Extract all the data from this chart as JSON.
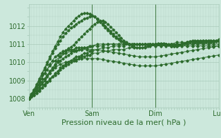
{
  "bg_color": "#cce8dc",
  "line_color": "#2d6b2d",
  "grid_color": "#aaccbb",
  "xlabel": "Pression niveau de la mer( hPa )",
  "xtick_labels": [
    "Ven",
    "Sam",
    "Dim",
    "Lun"
  ],
  "xtick_positions": [
    0,
    48,
    96,
    144
  ],
  "ylim": [
    1007.6,
    1013.2
  ],
  "yticks": [
    1008,
    1009,
    1010,
    1011,
    1012
  ],
  "xlabel_fontsize": 8,
  "tick_fontsize": 7,
  "series": [
    {
      "x": [
        0,
        2,
        4,
        6,
        8,
        10,
        12,
        14,
        16,
        18,
        20,
        22,
        24,
        26,
        28,
        30,
        32,
        34,
        36,
        38,
        40,
        42,
        44,
        46,
        48,
        52,
        56,
        60,
        64,
        68,
        72,
        76,
        80,
        84,
        88,
        92,
        96,
        100,
        104,
        108,
        112,
        116,
        120,
        124,
        128,
        132,
        136,
        140,
        144
      ],
      "y": [
        1008.0,
        1008.1,
        1008.2,
        1008.3,
        1008.5,
        1008.6,
        1008.8,
        1008.9,
        1009.1,
        1009.2,
        1009.4,
        1009.5,
        1009.7,
        1009.8,
        1009.9,
        1010.0,
        1010.1,
        1010.2,
        1010.3,
        1010.3,
        1010.4,
        1010.5,
        1010.5,
        1010.6,
        1010.6,
        1010.7,
        1010.8,
        1010.8,
        1010.9,
        1010.9,
        1010.9,
        1011.0,
        1011.0,
        1011.0,
        1011.0,
        1011.0,
        1011.0,
        1011.0,
        1011.0,
        1011.0,
        1011.0,
        1011.0,
        1011.0,
        1011.0,
        1011.0,
        1011.0,
        1011.0,
        1011.0,
        1011.0
      ]
    },
    {
      "x": [
        0,
        2,
        4,
        6,
        8,
        10,
        12,
        14,
        16,
        18,
        20,
        22,
        24,
        26,
        28,
        30,
        32,
        34,
        36,
        38,
        40,
        42,
        44,
        46,
        48,
        52,
        56,
        60,
        64,
        68,
        72,
        76,
        80,
        84,
        88,
        92,
        96,
        100,
        104,
        108,
        112,
        116,
        120,
        124,
        128,
        132,
        136,
        140,
        144
      ],
      "y": [
        1008.0,
        1008.1,
        1008.2,
        1008.3,
        1008.4,
        1008.6,
        1008.7,
        1008.9,
        1009.0,
        1009.2,
        1009.3,
        1009.4,
        1009.6,
        1009.7,
        1009.8,
        1009.9,
        1010.0,
        1010.1,
        1010.1,
        1010.2,
        1010.3,
        1010.3,
        1010.4,
        1010.4,
        1010.5,
        1010.5,
        1010.6,
        1010.6,
        1010.7,
        1010.7,
        1010.7,
        1010.8,
        1010.8,
        1010.8,
        1010.8,
        1010.9,
        1010.9,
        1010.9,
        1010.9,
        1010.9,
        1010.9,
        1010.9,
        1010.9,
        1010.9,
        1010.9,
        1010.9,
        1010.9,
        1010.9,
        1010.9
      ]
    },
    {
      "x": [
        0,
        2,
        4,
        6,
        8,
        10,
        12,
        14,
        16,
        18,
        20,
        22,
        24,
        26,
        28,
        30,
        32,
        34,
        36,
        38,
        40,
        42,
        44,
        46,
        48,
        52,
        56,
        60,
        64,
        68,
        72,
        76,
        80,
        84,
        88,
        92,
        96,
        100,
        104,
        108,
        112,
        116,
        120,
        124,
        128,
        132,
        136,
        140,
        144
      ],
      "y": [
        1008.0,
        1008.1,
        1008.3,
        1008.4,
        1008.6,
        1008.8,
        1009.0,
        1009.2,
        1009.4,
        1009.6,
        1009.8,
        1010.0,
        1010.1,
        1010.2,
        1010.3,
        1010.4,
        1010.5,
        1010.6,
        1010.6,
        1010.7,
        1010.7,
        1010.8,
        1010.8,
        1010.9,
        1010.9,
        1011.0,
        1011.0,
        1011.0,
        1011.0,
        1011.0,
        1011.0,
        1011.0,
        1011.0,
        1011.0,
        1011.0,
        1011.0,
        1011.0,
        1011.0,
        1011.0,
        1011.0,
        1011.0,
        1011.0,
        1011.0,
        1011.0,
        1011.05,
        1011.05,
        1011.1,
        1011.1,
        1011.15
      ]
    },
    {
      "x": [
        0,
        2,
        4,
        6,
        8,
        10,
        12,
        14,
        16,
        18,
        20,
        22,
        24,
        26,
        28,
        30,
        32,
        34,
        36,
        38,
        40,
        42,
        44,
        46,
        48,
        52,
        56,
        60,
        64,
        68,
        72,
        76,
        80,
        84,
        88,
        92,
        96,
        100,
        104,
        108,
        112,
        116,
        120,
        124,
        128,
        132,
        136,
        140,
        144
      ],
      "y": [
        1008.0,
        1008.2,
        1008.4,
        1008.6,
        1008.9,
        1009.1,
        1009.4,
        1009.6,
        1009.9,
        1010.1,
        1010.3,
        1010.4,
        1010.5,
        1010.6,
        1010.6,
        1010.7,
        1010.7,
        1010.7,
        1010.8,
        1010.8,
        1010.8,
        1010.8,
        1010.8,
        1010.9,
        1010.9,
        1010.9,
        1010.9,
        1011.0,
        1011.0,
        1011.0,
        1011.0,
        1011.0,
        1011.0,
        1011.0,
        1011.0,
        1011.0,
        1011.0,
        1011.0,
        1011.0,
        1011.0,
        1011.1,
        1011.1,
        1011.1,
        1011.1,
        1011.1,
        1011.1,
        1011.1,
        1011.1,
        1011.2
      ]
    },
    {
      "x": [
        0,
        2,
        4,
        6,
        8,
        10,
        12,
        14,
        16,
        18,
        20,
        22,
        24,
        26,
        28,
        30,
        32,
        34,
        36,
        38,
        40,
        42,
        44,
        46,
        48,
        50,
        52,
        54,
        56,
        58,
        60,
        62,
        64,
        66,
        68,
        70,
        72,
        74,
        76,
        78,
        80,
        82,
        84,
        86,
        88,
        90,
        92,
        94,
        96,
        98,
        100,
        102,
        104,
        106,
        108,
        110,
        112,
        114,
        116,
        118,
        120,
        122,
        124,
        126,
        128,
        130,
        132,
        134,
        136,
        138,
        140,
        142,
        144
      ],
      "y": [
        1008.0,
        1008.15,
        1008.3,
        1008.5,
        1008.7,
        1008.9,
        1009.1,
        1009.3,
        1009.5,
        1009.7,
        1009.9,
        1010.1,
        1010.3,
        1010.5,
        1010.65,
        1010.75,
        1010.85,
        1010.95,
        1011.1,
        1011.25,
        1011.4,
        1011.55,
        1011.7,
        1011.85,
        1012.0,
        1012.1,
        1012.2,
        1012.25,
        1012.3,
        1012.2,
        1012.1,
        1011.95,
        1011.8,
        1011.65,
        1011.5,
        1011.35,
        1011.2,
        1011.1,
        1011.0,
        1010.9,
        1010.85,
        1010.8,
        1010.8,
        1010.8,
        1010.85,
        1010.9,
        1010.95,
        1011.0,
        1011.0,
        1011.05,
        1011.05,
        1011.05,
        1011.0,
        1011.0,
        1010.95,
        1010.95,
        1010.95,
        1010.95,
        1011.0,
        1011.05,
        1011.1,
        1011.1,
        1011.1,
        1011.1,
        1011.1,
        1011.1,
        1011.1,
        1011.1,
        1011.1,
        1011.1,
        1011.15,
        1011.15,
        1011.2
      ]
    },
    {
      "x": [
        0,
        2,
        4,
        6,
        8,
        10,
        12,
        14,
        16,
        18,
        20,
        22,
        24,
        26,
        28,
        30,
        32,
        34,
        36,
        38,
        40,
        42,
        44,
        46,
        48,
        50,
        52,
        54,
        56,
        58,
        60,
        62,
        64,
        66,
        68,
        70,
        72,
        74,
        76,
        78,
        80,
        82,
        84,
        86,
        88,
        90,
        92,
        94,
        96,
        98,
        100,
        102,
        104,
        106,
        108,
        110,
        112,
        114,
        116,
        118,
        120,
        122,
        124,
        126,
        128,
        130,
        132,
        134,
        136,
        138,
        140,
        142,
        144
      ],
      "y": [
        1008.0,
        1008.2,
        1008.4,
        1008.7,
        1009.0,
        1009.3,
        1009.6,
        1009.9,
        1010.2,
        1010.5,
        1010.75,
        1011.0,
        1011.2,
        1011.4,
        1011.6,
        1011.75,
        1011.9,
        1012.0,
        1012.1,
        1012.2,
        1012.3,
        1012.4,
        1012.45,
        1012.5,
        1012.55,
        1012.5,
        1012.4,
        1012.3,
        1012.15,
        1012.0,
        1011.85,
        1011.7,
        1011.55,
        1011.4,
        1011.3,
        1011.2,
        1011.1,
        1011.05,
        1011.0,
        1011.0,
        1011.0,
        1011.0,
        1011.0,
        1011.0,
        1011.0,
        1011.0,
        1011.0,
        1011.0,
        1011.0,
        1011.0,
        1011.0,
        1011.0,
        1011.0,
        1010.95,
        1010.9,
        1010.9,
        1010.9,
        1010.95,
        1011.0,
        1011.05,
        1011.1,
        1011.15,
        1011.15,
        1011.15,
        1011.15,
        1011.15,
        1011.2,
        1011.2,
        1011.2,
        1011.2,
        1011.2,
        1011.2,
        1011.2
      ]
    },
    {
      "x": [
        0,
        2,
        4,
        6,
        8,
        10,
        12,
        14,
        16,
        18,
        20,
        22,
        24,
        26,
        28,
        30,
        32,
        34,
        36,
        38,
        40,
        42,
        44,
        46,
        48,
        50,
        52,
        54,
        56,
        58,
        60,
        62,
        64,
        66,
        68,
        70,
        72,
        74,
        76,
        78,
        80,
        82,
        84,
        86,
        88,
        90,
        92,
        94,
        96,
        98,
        100,
        102,
        104,
        106,
        108,
        110,
        112,
        114,
        116,
        118,
        120,
        122,
        124,
        126,
        128,
        130,
        132,
        134,
        136,
        138,
        140,
        142,
        144
      ],
      "y": [
        1008.0,
        1008.25,
        1008.5,
        1008.8,
        1009.1,
        1009.4,
        1009.7,
        1010.0,
        1010.3,
        1010.6,
        1010.9,
        1011.15,
        1011.4,
        1011.65,
        1011.85,
        1012.0,
        1012.15,
        1012.3,
        1012.45,
        1012.55,
        1012.65,
        1012.7,
        1012.7,
        1012.65,
        1012.6,
        1012.5,
        1012.35,
        1012.2,
        1012.05,
        1011.9,
        1011.75,
        1011.6,
        1011.45,
        1011.35,
        1011.25,
        1011.15,
        1011.1,
        1011.05,
        1011.0,
        1011.0,
        1011.0,
        1011.0,
        1011.0,
        1011.0,
        1011.0,
        1011.0,
        1011.0,
        1011.0,
        1011.0,
        1011.0,
        1011.0,
        1011.0,
        1011.0,
        1010.95,
        1010.9,
        1010.9,
        1010.9,
        1010.95,
        1011.0,
        1011.05,
        1011.1,
        1011.15,
        1011.2,
        1011.2,
        1011.2,
        1011.2,
        1011.2,
        1011.2,
        1011.2,
        1011.2,
        1011.2,
        1011.2,
        1011.25
      ]
    },
    {
      "x": [
        0,
        4,
        8,
        12,
        16,
        20,
        24,
        28,
        32,
        36,
        40,
        44,
        48,
        52,
        56,
        60,
        64,
        68,
        72,
        76,
        80,
        84,
        88,
        92,
        96,
        100,
        104,
        108,
        112,
        116,
        120,
        124,
        128,
        132,
        136,
        140,
        144
      ],
      "y": [
        1008.0,
        1008.5,
        1009.0,
        1009.4,
        1009.8,
        1010.1,
        1010.3,
        1010.5,
        1010.6,
        1010.65,
        1010.7,
        1010.7,
        1010.7,
        1010.7,
        1010.65,
        1010.6,
        1010.55,
        1010.5,
        1010.45,
        1010.4,
        1010.35,
        1010.3,
        1010.3,
        1010.3,
        1010.3,
        1010.35,
        1010.4,
        1010.45,
        1010.5,
        1010.55,
        1010.6,
        1010.65,
        1010.7,
        1010.75,
        1010.8,
        1010.85,
        1010.9
      ]
    },
    {
      "x": [
        0,
        4,
        8,
        12,
        16,
        20,
        24,
        28,
        32,
        36,
        40,
        44,
        48,
        52,
        56,
        60,
        64,
        68,
        72,
        76,
        80,
        84,
        88,
        92,
        96,
        100,
        104,
        108,
        112,
        116,
        120,
        124,
        128,
        132,
        136,
        140,
        144
      ],
      "y": [
        1008.0,
        1008.4,
        1008.8,
        1009.1,
        1009.4,
        1009.7,
        1009.9,
        1010.0,
        1010.1,
        1010.15,
        1010.2,
        1010.2,
        1010.2,
        1010.2,
        1010.15,
        1010.1,
        1010.05,
        1010.0,
        1009.95,
        1009.9,
        1009.85,
        1009.8,
        1009.8,
        1009.8,
        1009.8,
        1009.85,
        1009.9,
        1009.95,
        1010.0,
        1010.05,
        1010.1,
        1010.15,
        1010.2,
        1010.25,
        1010.3,
        1010.35,
        1010.4
      ]
    }
  ]
}
